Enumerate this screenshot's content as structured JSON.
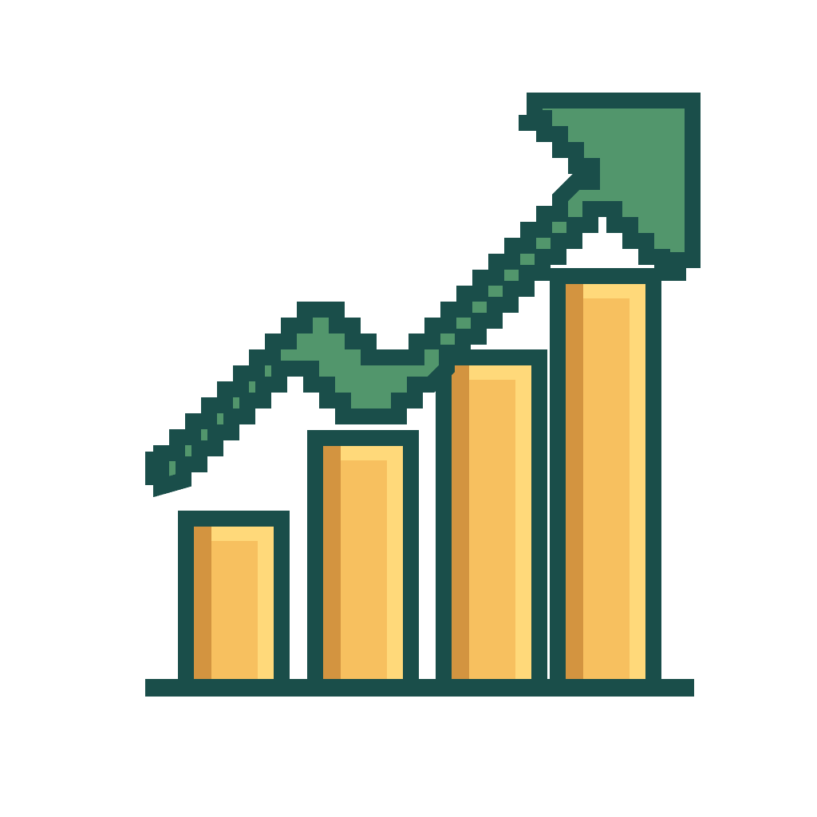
{
  "icon": {
    "name": "growth-chart-icon",
    "style": "pixel-art",
    "bar_count": 4,
    "bar_levels": [
      0.27,
      0.4,
      0.53,
      0.66
    ],
    "trend_direction": "up",
    "trend_arrow": "arrow-up-right-icon",
    "colors": {
      "background": "#ffffff",
      "outline": "#1a4e4a",
      "arrow_fill": "#52966c",
      "bar_fill": "#f7c05f",
      "bar_shadow": "#d39440",
      "bar_highlight": "#ffd97a"
    }
  }
}
